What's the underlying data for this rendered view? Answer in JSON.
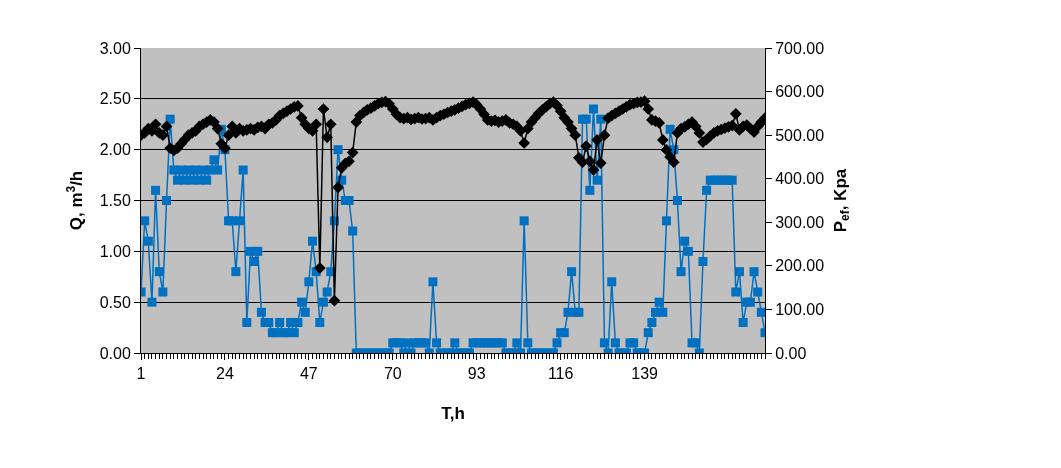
{
  "chart_data": {
    "type": "line",
    "xlabel": "T,h",
    "ylabel": "Q, m$^{3}$/h",
    "y2label": "P$_{ef}$, Kpa",
    "x": [
      1,
      2,
      3,
      4,
      5,
      6,
      7,
      8,
      9,
      10,
      11,
      12,
      13,
      14,
      15,
      16,
      17,
      18,
      19,
      20,
      21,
      22,
      23,
      24,
      25,
      26,
      27,
      28,
      29,
      30,
      31,
      32,
      33,
      34,
      35,
      36,
      37,
      38,
      39,
      40,
      41,
      42,
      43,
      44,
      45,
      46,
      47,
      48,
      49,
      50,
      51,
      52,
      53,
      54,
      55,
      56,
      57,
      58,
      59,
      60,
      61,
      62,
      63,
      64,
      65,
      66,
      67,
      68,
      69,
      70,
      71,
      72,
      73,
      74,
      75,
      76,
      77,
      78,
      79,
      80,
      81,
      82,
      83,
      84,
      85,
      86,
      87,
      88,
      89,
      90,
      91,
      92,
      93,
      94,
      95,
      96,
      97,
      98,
      99,
      100,
      101,
      102,
      103,
      104,
      105,
      106,
      107,
      108,
      109,
      110,
      111,
      112,
      113,
      114,
      115,
      116,
      117,
      118,
      119,
      120,
      121,
      122,
      123,
      124,
      125,
      126,
      127,
      128,
      129,
      130,
      131,
      132,
      133,
      134,
      135,
      136,
      137,
      138,
      139,
      140,
      141,
      142,
      143,
      144,
      145,
      146,
      147,
      148,
      149,
      150,
      151,
      152,
      153,
      154,
      155,
      156,
      157,
      158,
      159,
      160,
      161,
      162,
      163,
      164,
      165,
      166,
      167,
      168,
      169,
      170,
      171,
      172
    ],
    "xlim": [
      1,
      172
    ],
    "xticks": [
      1,
      24,
      47,
      70,
      93,
      116,
      139
    ],
    "ylim": [
      0,
      3
    ],
    "yticks": [
      {
        "value": 0,
        "label": "0.00"
      },
      {
        "value": 0.5,
        "label": "0.50"
      },
      {
        "value": 1,
        "label": "1.00"
      },
      {
        "value": 1.5,
        "label": "1.50"
      },
      {
        "value": 2,
        "label": "2.00"
      },
      {
        "value": 2.5,
        "label": "2.50"
      },
      {
        "value": 3,
        "label": "3.00"
      }
    ],
    "y2lim": [
      0,
      700
    ],
    "y2ticks": [
      {
        "value": 0,
        "label": "0.00"
      },
      {
        "value": 100,
        "label": "100.00"
      },
      {
        "value": 200,
        "label": "200.00"
      },
      {
        "value": 300,
        "label": "300.00"
      },
      {
        "value": 400,
        "label": "400.00"
      },
      {
        "value": 500,
        "label": "500.00"
      },
      {
        "value": 600,
        "label": "600.00"
      },
      {
        "value": 700,
        "label": "700.00"
      }
    ],
    "grid": "y",
    "series": [
      {
        "color": "#0070c0",
        "marker": "square",
        "values": [
          0.6,
          1.3,
          1.1,
          0.5,
          1.6,
          0.8,
          0.6,
          1.5,
          2.3,
          1.8,
          1.7,
          1.8,
          1.7,
          1.8,
          1.7,
          1.8,
          1.7,
          1.8,
          1.7,
          1.8,
          1.9,
          1.8,
          2.2,
          2.0,
          1.3,
          1.3,
          0.8,
          1.3,
          1.8,
          0.3,
          1.0,
          0.9,
          1.0,
          0.4,
          0.3,
          0.3,
          0.2,
          0.2,
          0.3,
          0.2,
          0.2,
          0.3,
          0.2,
          0.3,
          0.5,
          0.4,
          0.7,
          1.1,
          0.8,
          0.3,
          0.5,
          0.6,
          0.8,
          1.3,
          2.0,
          1.7,
          1.5,
          1.5,
          1.2,
          0.0,
          0,
          0,
          0,
          0,
          0,
          0,
          0,
          0,
          0,
          0.1,
          0.1,
          0.1,
          0,
          0.1,
          0,
          0.1,
          0.1,
          0.1,
          0.1,
          0,
          0.7,
          0.1,
          0,
          0,
          0,
          0,
          0.1,
          0,
          0,
          0,
          0,
          0.1,
          0.1,
          0.1,
          0.1,
          0.1,
          0.1,
          0.1,
          0.1,
          0.1,
          0,
          0,
          0,
          0.1,
          0,
          1.3,
          0.1,
          0,
          0,
          0,
          0,
          0,
          0,
          0,
          0.1,
          0.2,
          0.2,
          0.4,
          0.8,
          0.4,
          0.4,
          2.3,
          2.3,
          1.6,
          2.4,
          1.7,
          2.3,
          0.1,
          0,
          0.7,
          0.1,
          0,
          0,
          0,
          0.1,
          0.1,
          0,
          0,
          0,
          0.2,
          0.3,
          0.4,
          0.5,
          0.4,
          1.3,
          2.2,
          2.0,
          1.5,
          0.8,
          1.1,
          1.0,
          0.1,
          0.1,
          0,
          0.9,
          1.6,
          1.7,
          1.7,
          1.7,
          1.7,
          1.7,
          1.7,
          1.7,
          0.6,
          0.8,
          0.3,
          0.5,
          0.5,
          0.8,
          0.6,
          0.4,
          0.2
        ]
      },
      {
        "color": "#000000",
        "marker": "diamond",
        "axis": "y2",
        "values": [
          500,
          505,
          515,
          510,
          525,
          505,
          500,
          520,
          470,
          465,
          470,
          480,
          490,
          500,
          505,
          510,
          520,
          525,
          530,
          535,
          530,
          515,
          480,
          470,
          500,
          520,
          505,
          515,
          510,
          512,
          515,
          512,
          518,
          520,
          515,
          525,
          528,
          535,
          545,
          550,
          555,
          560,
          565,
          567,
          540,
          525,
          515,
          510,
          525,
          195,
          560,
          495,
          525,
          120,
          380,
          425,
          435,
          440,
          460,
          530,
          545,
          552,
          558,
          562,
          567,
          572,
          575,
          577,
          572,
          560,
          548,
          540,
          538,
          540,
          536,
          538,
          540,
          537,
          538,
          540,
          535,
          540,
          545,
          548,
          552,
          555,
          558,
          562,
          566,
          570,
          573,
          576,
          570,
          560,
          548,
          535,
          532,
          534,
          530,
          532,
          535,
          528,
          525,
          520,
          510,
          482,
          515,
          530,
          540,
          550,
          558,
          565,
          572,
          576,
          568,
          555,
          540,
          530,
          515,
          500,
          448,
          438,
          475,
          440,
          420,
          489,
          436,
          500,
          539,
          545,
          550,
          555,
          560,
          565,
          570,
          572,
          575,
          576,
          578,
          560,
          535,
          532,
          528,
          489,
          466,
          450,
          438,
          505,
          515,
          519,
          525,
          530,
          520,
          505,
          484,
          490,
          498,
          505,
          510,
          513,
          516,
          519,
          522,
          549,
          512,
          520,
          523,
          515,
          507,
          520,
          530,
          539
        ]
      }
    ]
  }
}
